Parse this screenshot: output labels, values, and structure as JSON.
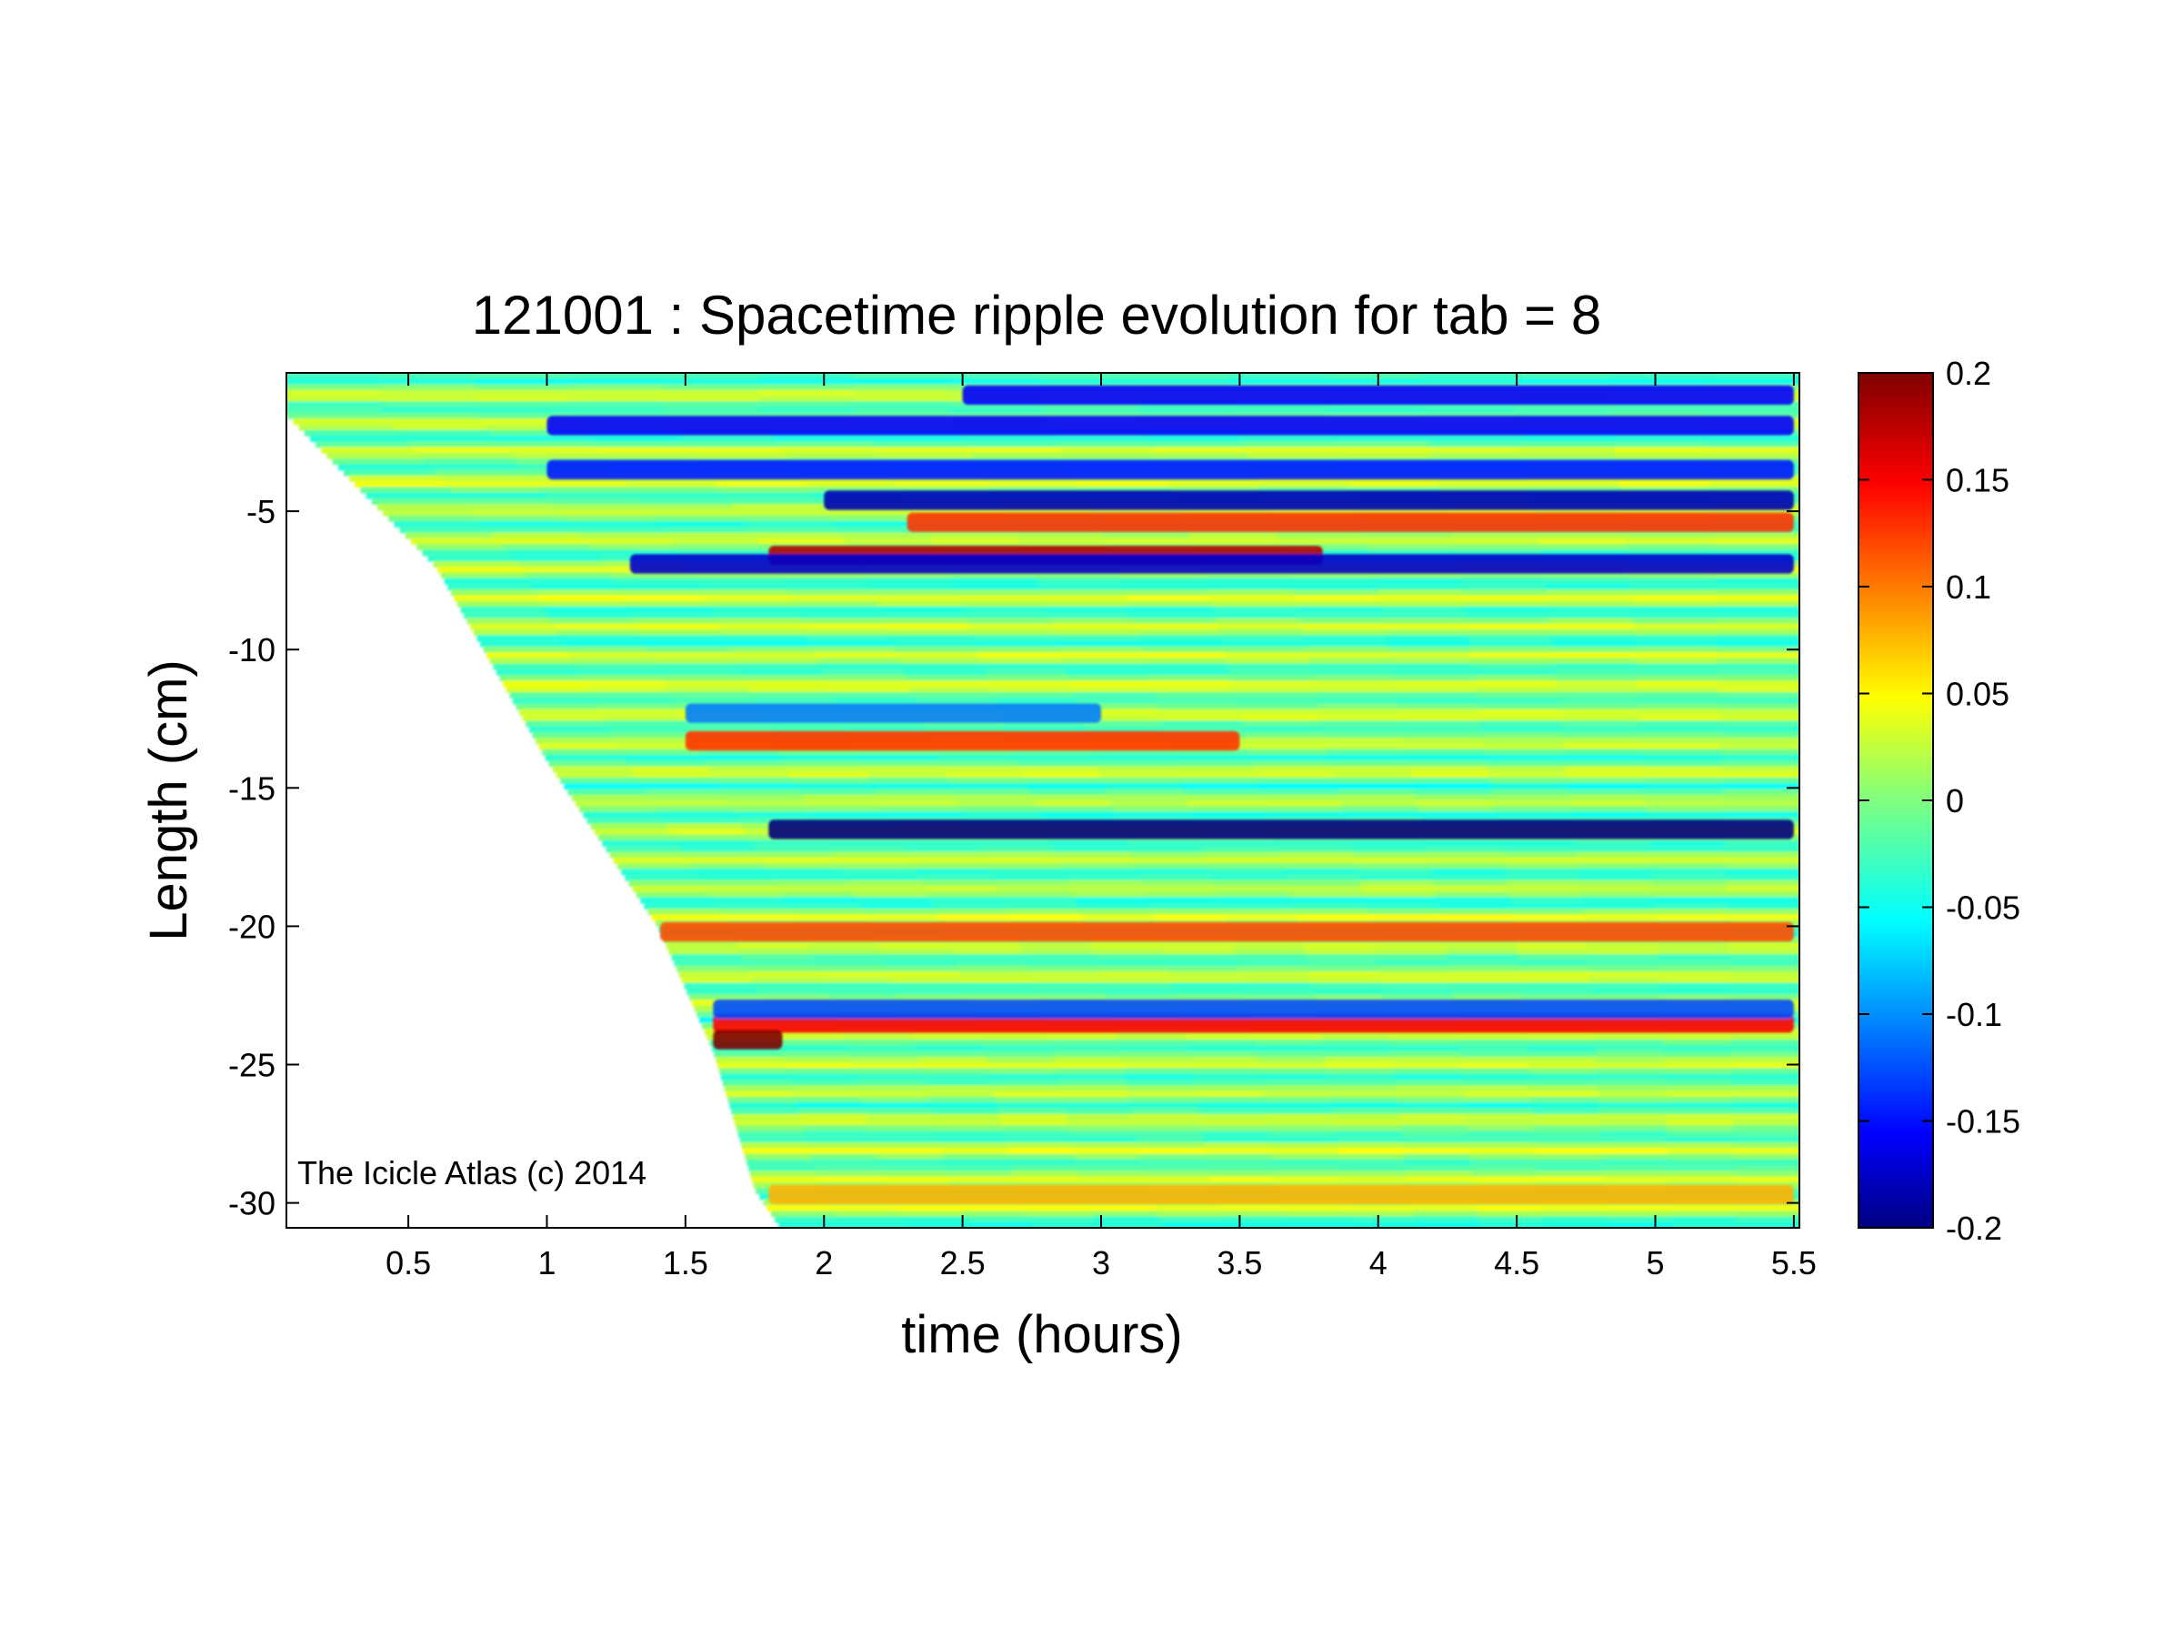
{
  "chart_data": {
    "type": "heatmap",
    "title": "121001 : Spacetime ripple evolution for tab = 8",
    "xlabel": "time (hours)",
    "ylabel": "Length (cm)",
    "xlim": [
      0.06,
      5.52
    ],
    "ylim": [
      -30.9,
      0.0
    ],
    "xticks": [
      0.5,
      1,
      1.5,
      2,
      2.5,
      3,
      3.5,
      4,
      4.5,
      5,
      5.5
    ],
    "xtick_labels": [
      "0.5",
      "1",
      "1.5",
      "2",
      "2.5",
      "3",
      "3.5",
      "4",
      "4.5",
      "5",
      "5.5"
    ],
    "yticks": [
      -5,
      -10,
      -15,
      -20,
      -25,
      -30
    ],
    "ytick_labels": [
      "-5",
      "-10",
      "-15",
      "-20",
      "-25",
      "-30"
    ],
    "colormap": "jet",
    "clim": [
      -0.2,
      0.2
    ],
    "colorbar": {
      "ticks": [
        0.2,
        0.15,
        0.1,
        0.05,
        0,
        -0.05,
        -0.1,
        -0.15,
        -0.2
      ],
      "tick_labels": [
        "0.2",
        "0.15",
        "0.1",
        "0.05",
        "0",
        "-0.05",
        "-0.1",
        "-0.15",
        "-0.2"
      ]
    },
    "growth_front": {
      "description": "icicle tip position; data exists only after this time",
      "time": [
        0.06,
        0.6,
        1.0,
        1.4,
        1.6,
        1.75,
        1.85
      ],
      "length": [
        -1.5,
        -7.0,
        -14.0,
        -20.0,
        -24.5,
        -29.5,
        -31.0
      ]
    },
    "features": [
      {
        "time_range": [
          1.8,
          3.8
        ],
        "length": -6.6,
        "amplitude": 0.18
      },
      {
        "time_range": [
          1.3,
          5.5
        ],
        "length": -6.9,
        "amplitude": -0.17
      },
      {
        "time_range": [
          2.0,
          5.5
        ],
        "length": -4.6,
        "amplitude": -0.18
      },
      {
        "time_range": [
          2.3,
          5.5
        ],
        "length": -5.4,
        "amplitude": 0.13
      },
      {
        "time_range": [
          1.0,
          5.5
        ],
        "length": -1.9,
        "amplitude": -0.15
      },
      {
        "time_range": [
          2.5,
          5.5
        ],
        "length": -0.8,
        "amplitude": -0.15
      },
      {
        "time_range": [
          1.0,
          5.5
        ],
        "length": -3.5,
        "amplitude": -0.14
      },
      {
        "time_range": [
          1.5,
          3.5
        ],
        "length": -13.3,
        "amplitude": 0.13
      },
      {
        "time_range": [
          1.5,
          3.0
        ],
        "length": -12.3,
        "amplitude": -0.1
      },
      {
        "time_range": [
          1.6,
          5.5
        ],
        "length": -23.5,
        "amplitude": 0.15
      },
      {
        "time_range": [
          1.6,
          5.5
        ],
        "length": -23.0,
        "amplitude": -0.12
      },
      {
        "time_range": [
          1.6,
          1.85
        ],
        "length": -24.1,
        "amplitude": 0.2
      },
      {
        "time_range": [
          1.3,
          5.5
        ],
        "length": -20.2,
        "amplitude": 0.12
      },
      {
        "time_range": [
          1.8,
          5.5
        ],
        "length": -16.5,
        "amplitude": -0.2
      },
      {
        "time_range": [
          1.8,
          5.5
        ],
        "length": -29.7,
        "amplitude": 0.08
      }
    ]
  },
  "annotation": "The Icicle Atlas (c) 2014",
  "colors": {
    "background": "#ffffff",
    "axis": "#000000"
  }
}
